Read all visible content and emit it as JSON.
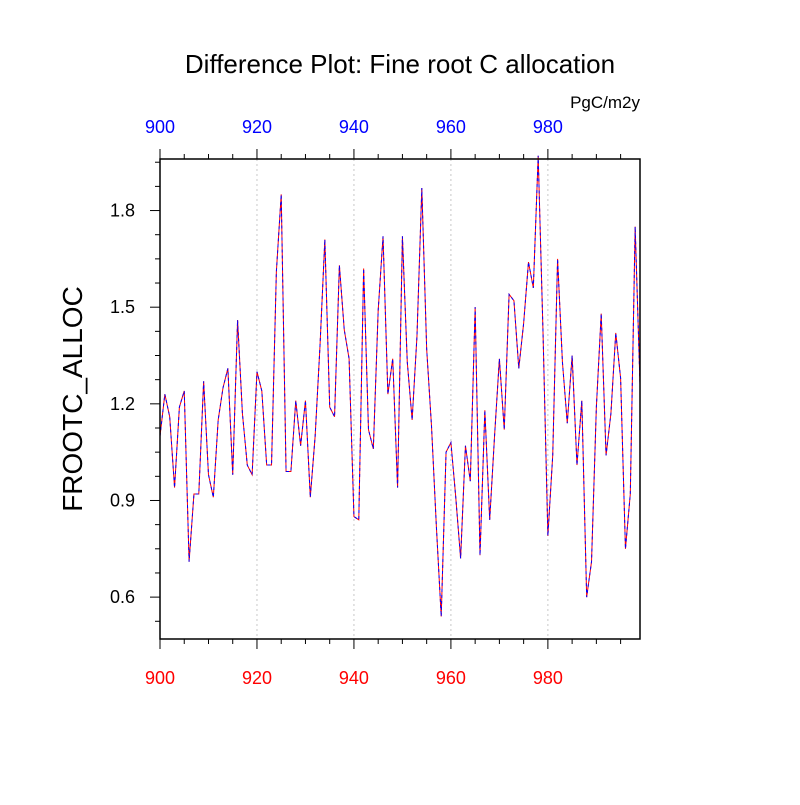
{
  "chart_data": {
    "type": "line",
    "title": "Difference Plot: Fine root C allocation",
    "units": "PgC/m2y",
    "ylabel": "FROOTC_ALLOC",
    "xlabel": "",
    "xlim": [
      900,
      999
    ],
    "ylim": [
      0.47,
      1.96
    ],
    "grid": {
      "x": true,
      "y": false
    },
    "x_ticks": [
      900,
      920,
      940,
      960,
      980
    ],
    "x_tick_labels": [
      "900",
      "920",
      "940",
      "960",
      "980"
    ],
    "y_ticks": [
      0.6,
      0.9,
      1.2,
      1.5,
      1.8
    ],
    "y_tick_labels": [
      "0.6",
      "0.9",
      "1.2",
      "1.5",
      "1.8"
    ],
    "colors": {
      "bottom_axis_labels": "#ff0000",
      "top_axis_labels": "#0000ff",
      "series_a": "#ff0000",
      "series_b": "#0000ff"
    },
    "x_start": 900,
    "series": [
      {
        "color": "#ff0000",
        "values": [
          1.1,
          1.23,
          1.16,
          0.94,
          1.19,
          1.24,
          0.71,
          0.92,
          0.92,
          1.27,
          0.98,
          0.91,
          1.15,
          1.25,
          1.31,
          0.98,
          1.46,
          1.17,
          1.01,
          0.98,
          1.3,
          1.24,
          1.01,
          1.01,
          1.61,
          1.85,
          0.99,
          0.99,
          1.21,
          1.07,
          1.21,
          0.91,
          1.1,
          1.38,
          1.71,
          1.19,
          1.16,
          1.63,
          1.43,
          1.34,
          0.85,
          0.84,
          1.62,
          1.12,
          1.06,
          1.49,
          1.72,
          1.23,
          1.34,
          0.94,
          1.72,
          1.33,
          1.15,
          1.41,
          1.87,
          1.37,
          1.13,
          0.82,
          0.54,
          1.05,
          1.08,
          0.91,
          0.72,
          1.07,
          0.96,
          1.5,
          0.73,
          1.18,
          0.84,
          1.1,
          1.34,
          1.12,
          1.54,
          1.52,
          1.31,
          1.45,
          1.64,
          1.56,
          1.97,
          1.42,
          0.79,
          1.04,
          1.65,
          1.33,
          1.14,
          1.35,
          1.01,
          1.21,
          0.6,
          0.71,
          1.19,
          1.48,
          1.04,
          1.17,
          1.42,
          1.28,
          0.75,
          0.92,
          1.75,
          1.26
        ]
      },
      {
        "color": "#0000ff",
        "values": [
          1.1,
          1.23,
          1.16,
          0.94,
          1.19,
          1.24,
          0.71,
          0.92,
          0.92,
          1.27,
          0.98,
          0.91,
          1.15,
          1.25,
          1.31,
          0.98,
          1.46,
          1.17,
          1.01,
          0.98,
          1.3,
          1.24,
          1.01,
          1.01,
          1.61,
          1.85,
          0.99,
          0.99,
          1.21,
          1.07,
          1.21,
          0.91,
          1.1,
          1.38,
          1.71,
          1.19,
          1.16,
          1.63,
          1.43,
          1.34,
          0.85,
          0.84,
          1.62,
          1.12,
          1.06,
          1.49,
          1.72,
          1.23,
          1.34,
          0.94,
          1.72,
          1.33,
          1.15,
          1.41,
          1.87,
          1.37,
          1.13,
          0.82,
          0.54,
          1.05,
          1.08,
          0.91,
          0.72,
          1.07,
          0.96,
          1.5,
          0.73,
          1.18,
          0.84,
          1.1,
          1.34,
          1.12,
          1.54,
          1.52,
          1.31,
          1.45,
          1.64,
          1.56,
          1.97,
          1.42,
          0.79,
          1.04,
          1.65,
          1.33,
          1.14,
          1.35,
          1.01,
          1.21,
          0.6,
          0.71,
          1.19,
          1.48,
          1.04,
          1.17,
          1.42,
          1.28,
          0.75,
          0.92,
          1.75,
          1.26
        ]
      }
    ]
  }
}
